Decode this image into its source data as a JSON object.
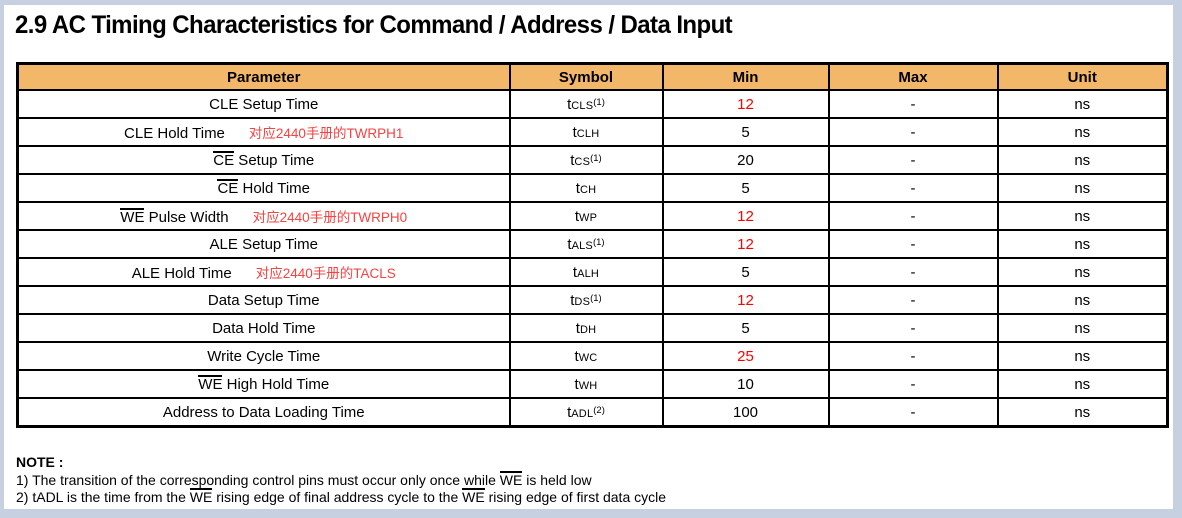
{
  "title": "2.9 AC Timing Characteristics for Command / Address / Data Input",
  "colors": {
    "header_bg": "#f3b76a",
    "red_value": "#ff0000",
    "red_annotation": "#fb4040",
    "window_border": "#c6d0e0"
  },
  "table": {
    "headers": [
      "Parameter",
      "Symbol",
      "Min",
      "Max",
      "Unit"
    ],
    "rows": [
      {
        "param_over": "",
        "param_text": "CLE Setup Time",
        "annotation": "",
        "sym_base": "t",
        "sym_sub": "CLS",
        "sym_sup": "(1)",
        "min": "12",
        "min_red": true,
        "max": "-",
        "unit": "ns"
      },
      {
        "param_over": "",
        "param_text": "CLE Hold Time",
        "annotation": "对应2440手册的TWRPH1",
        "sym_base": "t",
        "sym_sub": "CLH",
        "sym_sup": "",
        "min": "5",
        "min_red": false,
        "max": "-",
        "unit": "ns"
      },
      {
        "param_over": "CE",
        "param_text": " Setup Time",
        "annotation": "",
        "sym_base": "t",
        "sym_sub": "CS",
        "sym_sup": "(1)",
        "min": "20",
        "min_red": false,
        "max": "-",
        "unit": "ns"
      },
      {
        "param_over": "CE",
        "param_text": " Hold Time",
        "annotation": "",
        "sym_base": "t",
        "sym_sub": "CH",
        "sym_sup": "",
        "min": "5",
        "min_red": false,
        "max": "-",
        "unit": "ns"
      },
      {
        "param_over": "WE",
        "param_text": " Pulse Width",
        "annotation": "对应2440手册的TWRPH0",
        "sym_base": "t",
        "sym_sub": "WP",
        "sym_sup": "",
        "min": "12",
        "min_red": true,
        "max": "-",
        "unit": "ns"
      },
      {
        "param_over": "",
        "param_text": "ALE Setup Time",
        "annotation": "",
        "sym_base": "t",
        "sym_sub": "ALS",
        "sym_sup": "(1)",
        "min": "12",
        "min_red": true,
        "max": "-",
        "unit": "ns"
      },
      {
        "param_over": "",
        "param_text": "ALE Hold Time",
        "annotation": "对应2440手册的TACLS",
        "sym_base": "t",
        "sym_sub": "ALH",
        "sym_sup": "",
        "min": "5",
        "min_red": false,
        "max": "-",
        "unit": "ns"
      },
      {
        "param_over": "",
        "param_text": "Data Setup Time",
        "annotation": "",
        "sym_base": "t",
        "sym_sub": "DS",
        "sym_sup": "(1)",
        "min": "12",
        "min_red": true,
        "max": "-",
        "unit": "ns"
      },
      {
        "param_over": "",
        "param_text": "Data Hold Time",
        "annotation": "",
        "sym_base": "t",
        "sym_sub": "DH",
        "sym_sup": "",
        "min": "5",
        "min_red": false,
        "max": "-",
        "unit": "ns"
      },
      {
        "param_over": "",
        "param_text": "Write Cycle Time",
        "annotation": "",
        "sym_base": "t",
        "sym_sub": "WC",
        "sym_sup": "",
        "min": "25",
        "min_red": true,
        "max": "-",
        "unit": "ns"
      },
      {
        "param_over": "WE",
        "param_text": " High Hold Time",
        "annotation": "",
        "sym_base": "t",
        "sym_sub": "WH",
        "sym_sup": "",
        "min": "10",
        "min_red": false,
        "max": "-",
        "unit": "ns"
      },
      {
        "param_over": "",
        "param_text": "Address to Data Loading Time",
        "annotation": "",
        "sym_base": "t",
        "sym_sub": "ADL",
        "sym_sup": "(2)",
        "min": "100",
        "min_red": false,
        "max": "-",
        "unit": "ns"
      }
    ]
  },
  "note": {
    "label": "NOTE :",
    "lines": [
      [
        {
          "t": "1) The transition of the corresponding control pins must occur only once while "
        },
        {
          "t": "WE",
          "ov": true
        },
        {
          "t": " is held low"
        }
      ],
      [
        {
          "t": "2) tADL is the time from the "
        },
        {
          "t": "WE",
          "ov": true
        },
        {
          "t": " rising edge of final address cycle to the "
        },
        {
          "t": "WE",
          "ov": true
        },
        {
          "t": " rising edge of first data cycle"
        }
      ]
    ]
  }
}
